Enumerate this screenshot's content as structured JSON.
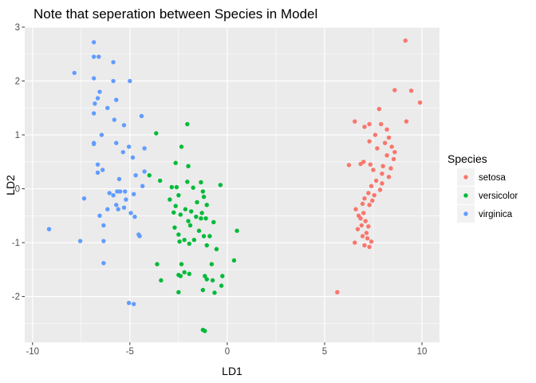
{
  "chart_data": {
    "type": "scatter",
    "title": "Note that seperation between Species in Model",
    "xlabel": "LD1",
    "ylabel": "LD2",
    "xlim": [
      -10.4,
      10.9
    ],
    "ylim": [
      -2.85,
      3.0
    ],
    "x_ticks": [
      -10,
      -5,
      0,
      5,
      10
    ],
    "y_ticks": [
      -2,
      -1,
      0,
      1,
      2,
      3
    ],
    "grid": true,
    "legend": {
      "title": "Species",
      "position": "right"
    },
    "series": [
      {
        "name": "setosa",
        "color": "#F8766D",
        "points": [
          [
            9.15,
            2.75
          ],
          [
            8.6,
            1.83
          ],
          [
            9.45,
            1.82
          ],
          [
            9.9,
            1.6
          ],
          [
            7.8,
            1.48
          ],
          [
            6.55,
            1.25
          ],
          [
            7.3,
            1.2
          ],
          [
            7.05,
            1.15
          ],
          [
            7.9,
            1.2
          ],
          [
            9.2,
            1.25
          ],
          [
            8.2,
            1.1
          ],
          [
            7.6,
            1.0
          ],
          [
            8.3,
            0.95
          ],
          [
            7.3,
            0.88
          ],
          [
            8.1,
            0.85
          ],
          [
            8.45,
            0.78
          ],
          [
            7.7,
            0.75
          ],
          [
            8.6,
            0.68
          ],
          [
            8.2,
            0.62
          ],
          [
            8.55,
            0.55
          ],
          [
            7.0,
            0.5
          ],
          [
            6.85,
            0.46
          ],
          [
            7.35,
            0.45
          ],
          [
            6.25,
            0.44
          ],
          [
            8.0,
            0.42
          ],
          [
            8.4,
            0.38
          ],
          [
            7.5,
            0.35
          ],
          [
            7.95,
            0.28
          ],
          [
            8.3,
            0.22
          ],
          [
            7.65,
            0.15
          ],
          [
            7.95,
            0.1
          ],
          [
            7.4,
            0.05
          ],
          [
            7.85,
            -0.02
          ],
          [
            7.25,
            -0.08
          ],
          [
            7.55,
            -0.12
          ],
          [
            7.05,
            -0.18
          ],
          [
            7.45,
            -0.22
          ],
          [
            6.95,
            -0.28
          ],
          [
            7.3,
            -0.3
          ],
          [
            6.6,
            -0.38
          ],
          [
            7.0,
            -0.45
          ],
          [
            6.75,
            -0.5
          ],
          [
            6.85,
            -0.55
          ],
          [
            7.1,
            -0.6
          ],
          [
            6.9,
            -0.68
          ],
          [
            7.25,
            -0.7
          ],
          [
            6.7,
            -0.75
          ],
          [
            7.15,
            -0.82
          ],
          [
            6.95,
            -0.88
          ],
          [
            7.2,
            -0.92
          ],
          [
            7.4,
            -0.98
          ],
          [
            6.55,
            -1.0
          ],
          [
            7.05,
            -1.05
          ],
          [
            7.3,
            -1.08
          ],
          [
            5.65,
            -1.92
          ]
        ]
      },
      {
        "name": "versicolor",
        "color": "#00BA38",
        "points": [
          [
            -2.05,
            1.2
          ],
          [
            -3.65,
            1.03
          ],
          [
            -2.35,
            0.78
          ],
          [
            -2.65,
            0.48
          ],
          [
            -2.0,
            0.42
          ],
          [
            -4.0,
            0.25
          ],
          [
            -3.45,
            0.15
          ],
          [
            -2.05,
            0.13
          ],
          [
            -1.35,
            0.12
          ],
          [
            -2.85,
            0.03
          ],
          [
            -2.6,
            0.03
          ],
          [
            -1.75,
            0.02
          ],
          [
            -0.35,
            0.07
          ],
          [
            -1.25,
            -0.05
          ],
          [
            -2.5,
            -0.12
          ],
          [
            -1.2,
            -0.15
          ],
          [
            -2.95,
            -0.2
          ],
          [
            -1.55,
            -0.25
          ],
          [
            -2.65,
            -0.32
          ],
          [
            -1.05,
            -0.3
          ],
          [
            -2.15,
            -0.38
          ],
          [
            -1.85,
            -0.42
          ],
          [
            -2.75,
            -0.44
          ],
          [
            -1.3,
            -0.45
          ],
          [
            -2.4,
            -0.48
          ],
          [
            -1.6,
            -0.52
          ],
          [
            -1.1,
            -0.55
          ],
          [
            -1.35,
            -0.55
          ],
          [
            -2.0,
            -0.6
          ],
          [
            -0.7,
            -0.62
          ],
          [
            -1.9,
            -0.68
          ],
          [
            -2.7,
            -0.72
          ],
          [
            -1.45,
            -0.78
          ],
          [
            0.5,
            -0.78
          ],
          [
            -2.5,
            -0.85
          ],
          [
            -1.2,
            -0.88
          ],
          [
            -0.9,
            -0.88
          ],
          [
            -1.7,
            -0.95
          ],
          [
            -2.2,
            -0.95
          ],
          [
            -2.45,
            -0.98
          ],
          [
            -1.95,
            -1.02
          ],
          [
            -1.05,
            -1.05
          ],
          [
            -0.55,
            -1.12
          ],
          [
            -3.6,
            -1.4
          ],
          [
            -2.35,
            -1.4
          ],
          [
            -0.8,
            -1.4
          ],
          [
            0.35,
            -1.33
          ],
          [
            -2.2,
            -1.55
          ],
          [
            -1.95,
            -1.58
          ],
          [
            -2.5,
            -1.6
          ],
          [
            -2.4,
            -1.62
          ],
          [
            -1.15,
            -1.62
          ],
          [
            -0.25,
            -1.62
          ],
          [
            -1.05,
            -1.68
          ],
          [
            -3.4,
            -1.7
          ],
          [
            -0.75,
            -1.7
          ],
          [
            -0.3,
            -1.8
          ],
          [
            -1.25,
            -1.88
          ],
          [
            -2.5,
            -1.92
          ],
          [
            -0.65,
            -1.93
          ],
          [
            -1.25,
            -2.62
          ],
          [
            -1.15,
            -2.64
          ]
        ]
      },
      {
        "name": "virginica",
        "color": "#619CFF",
        "points": [
          [
            -6.85,
            2.72
          ],
          [
            -6.85,
            2.45
          ],
          [
            -6.6,
            2.45
          ],
          [
            -5.85,
            2.35
          ],
          [
            -7.85,
            2.15
          ],
          [
            -6.85,
            2.05
          ],
          [
            -5.85,
            2.0
          ],
          [
            -5.0,
            2.0
          ],
          [
            -6.55,
            1.8
          ],
          [
            -6.65,
            1.68
          ],
          [
            -5.7,
            1.65
          ],
          [
            -6.8,
            1.58
          ],
          [
            -6.15,
            1.5
          ],
          [
            -6.85,
            1.4
          ],
          [
            -4.4,
            1.35
          ],
          [
            -5.8,
            1.28
          ],
          [
            -5.3,
            1.18
          ],
          [
            -6.45,
            1.0
          ],
          [
            -6.85,
            0.85
          ],
          [
            -6.85,
            0.83
          ],
          [
            -5.7,
            0.85
          ],
          [
            -5.05,
            0.78
          ],
          [
            -4.25,
            0.75
          ],
          [
            -5.35,
            0.68
          ],
          [
            -4.85,
            0.58
          ],
          [
            -6.65,
            0.45
          ],
          [
            -6.4,
            0.35
          ],
          [
            -4.25,
            0.32
          ],
          [
            -6.65,
            0.3
          ],
          [
            -4.7,
            0.25
          ],
          [
            -5.55,
            0.18
          ],
          [
            -4.35,
            0.05
          ],
          [
            -5.5,
            -0.05
          ],
          [
            -5.65,
            -0.05
          ],
          [
            -5.25,
            -0.05
          ],
          [
            -6.05,
            -0.08
          ],
          [
            -4.8,
            -0.1
          ],
          [
            -5.85,
            -0.12
          ],
          [
            -7.35,
            -0.18
          ],
          [
            -5.2,
            -0.2
          ],
          [
            -5.7,
            -0.3
          ],
          [
            -5.3,
            -0.35
          ],
          [
            -5.6,
            -0.38
          ],
          [
            -6.15,
            -0.38
          ],
          [
            -4.95,
            -0.45
          ],
          [
            -6.55,
            -0.5
          ],
          [
            -4.75,
            -0.52
          ],
          [
            -6.35,
            -0.68
          ],
          [
            -9.15,
            -0.75
          ],
          [
            -4.55,
            -0.85
          ],
          [
            -4.5,
            -0.88
          ],
          [
            -7.55,
            -0.97
          ],
          [
            -6.35,
            -0.97
          ],
          [
            -6.35,
            -1.38
          ],
          [
            -5.05,
            -2.12
          ],
          [
            -4.8,
            -2.14
          ]
        ]
      }
    ]
  }
}
